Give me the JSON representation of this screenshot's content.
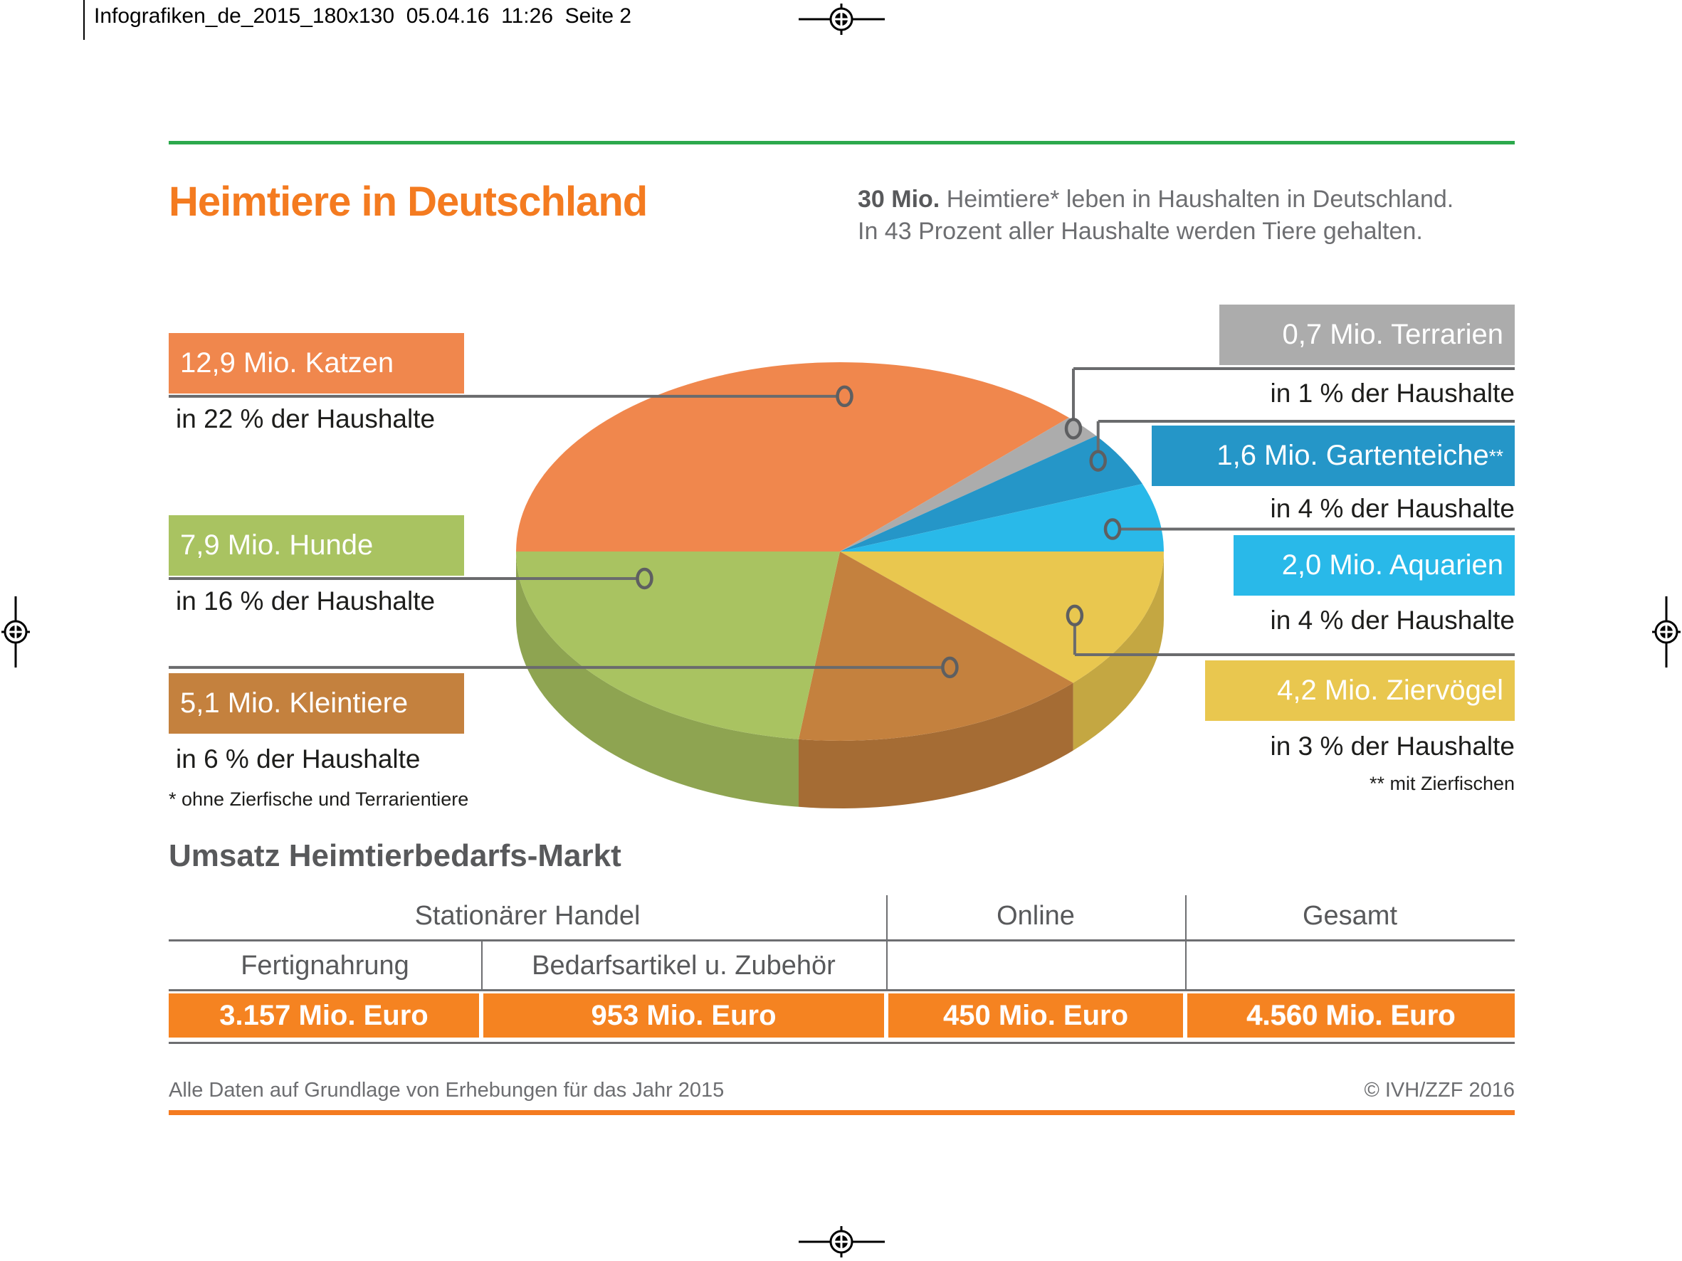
{
  "print_header": "Infografiken_de_2015_180x130  05.04.16  11:26  Seite 2",
  "header": {
    "title": "Heimtiere in Deutschland",
    "intro_bold": "30 Mio.",
    "intro_rest": " Heimtiere* leben in Haushalten in Deutschland.",
    "intro_line2": "In 43 Prozent aller Haushalte werden Tiere gehalten."
  },
  "chart_data": {
    "type": "pie",
    "title": "Heimtiere in Deutschland",
    "unit": "Mio.",
    "total_note": "30 Mio. Heimtiere, in 43 % aller Haushalte",
    "legend_position": "callout-labels",
    "slices": [
      {
        "key": "katzen",
        "label": "Katzen",
        "value": 12.9,
        "value_label": "12,9 Mio. Katzen",
        "sup": "",
        "household_pct": 22,
        "household_label": "in 22 % der Haushalte",
        "color": "#F0874D",
        "side": "left"
      },
      {
        "key": "terrarien",
        "label": "Terrarien",
        "value": 0.7,
        "value_label": "0,7 Mio. Terrarien",
        "sup": "",
        "household_pct": 1,
        "household_label": "in 1 % der Haushalte",
        "color": "#ACACAC",
        "side": "right"
      },
      {
        "key": "gartenteiche",
        "label": "Gartenteiche",
        "value": 1.6,
        "value_label": "1,6 Mio. Gartenteiche",
        "sup": "**",
        "household_pct": 4,
        "household_label": "in 4 % der Haushalte",
        "color": "#2596C8",
        "side": "right"
      },
      {
        "key": "aquarien",
        "label": "Aquarien",
        "value": 2.0,
        "value_label": "2,0 Mio. Aquarien",
        "sup": "",
        "household_pct": 4,
        "household_label": "in 4 % der Haushalte",
        "color": "#29B9E9",
        "side": "right"
      },
      {
        "key": "ziervoegel",
        "label": "Ziervögel",
        "value": 4.2,
        "value_label": "4,2 Mio. Ziervögel",
        "sup": "",
        "household_pct": 3,
        "household_label": "in 3 % der Haushalte",
        "color": "#E9C74F",
        "side": "right"
      },
      {
        "key": "kleintiere",
        "label": "Kleintiere",
        "value": 5.1,
        "value_label": "5,1 Mio. Kleintiere",
        "sup": "",
        "household_pct": 6,
        "household_label": "in 6 % der Haushalte",
        "color": "#C4813E",
        "side": "left"
      },
      {
        "key": "hunde",
        "label": "Hunde",
        "value": 7.9,
        "value_label": "7,9 Mio. Hunde",
        "sup": "",
        "household_pct": 16,
        "household_label": "in 16 % der Haushalte",
        "color": "#A9C361",
        "side": "left"
      }
    ],
    "footnote_left": "* ohne Zierfische und Terrarientiere",
    "footnote_right": "** mit Zierfischen"
  },
  "table": {
    "title": "Umsatz Heimtierbedarfs-Markt",
    "group_cols": [
      "Stationärer Handel",
      "Online",
      "Gesamt"
    ],
    "sub_cols": [
      "Fertignahrung",
      "Bedarfsartikel u. Zubehör"
    ],
    "values": [
      "3.157 Mio. Euro",
      "953 Mio. Euro",
      "450 Mio. Euro",
      "4.560 Mio. Euro"
    ]
  },
  "footer": {
    "source": "Alle Daten auf Grundlage von Erhebungen für das Jahr 2015",
    "copyright": "© IVH/ZZF 2016"
  }
}
